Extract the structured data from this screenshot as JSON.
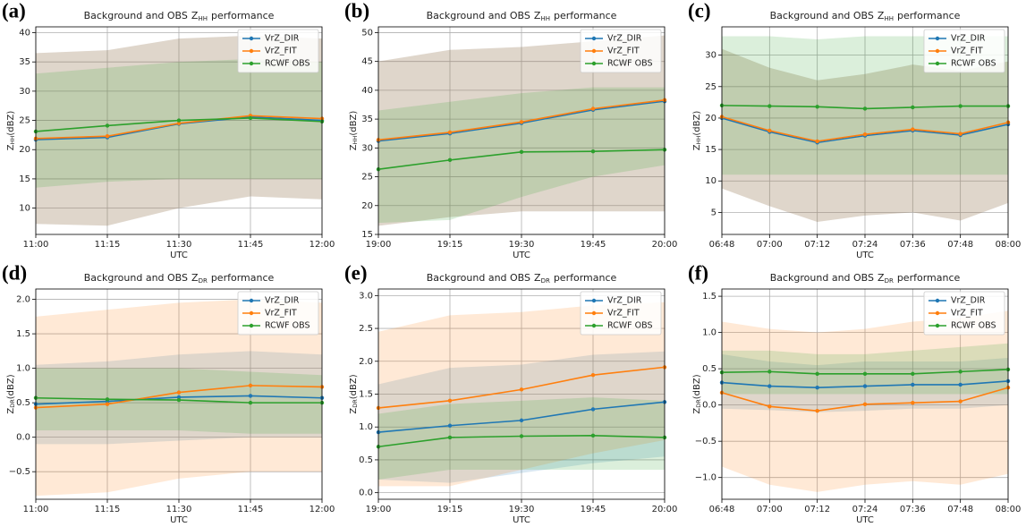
{
  "chart_data": [
    {
      "type": "line",
      "panel": "(a)",
      "title": "Background and OBS",
      "title_var": "Z",
      "title_sub": "HH",
      "title_end": "performance",
      "ylabel": "Z",
      "ylabel_sub": "HH",
      "ylabel_unit": "(dBZ)",
      "xlabel": "UTC",
      "categories": [
        "11:00",
        "11:15",
        "11:30",
        "11:45",
        "12:00"
      ],
      "series": [
        {
          "name": "VrZ_DIR",
          "color": "#1f77b4",
          "values": [
            21.7,
            22.1,
            24.4,
            25.6,
            25.0
          ],
          "lower": [
            7.3,
            7.0,
            10,
            12,
            11.5
          ],
          "upper": [
            36.5,
            37,
            39,
            39.5,
            39
          ]
        },
        {
          "name": "VrZ_FIT",
          "color": "#ff7f0e",
          "values": [
            21.9,
            22.3,
            24.5,
            25.8,
            25.3
          ],
          "lower": [
            7.3,
            7.0,
            10,
            12,
            11.5
          ],
          "upper": [
            36.5,
            37,
            39,
            39.5,
            39
          ]
        },
        {
          "name": "RCWF OBS",
          "color": "#2ca02c",
          "values": [
            23.1,
            24.1,
            25.0,
            25.4,
            24.8
          ],
          "lower": [
            13.5,
            14.5,
            15,
            15,
            15
          ],
          "upper": [
            33,
            34,
            35,
            35.5,
            35
          ]
        }
      ],
      "ylim": [
        5.5,
        41
      ],
      "yticks": [
        10,
        15,
        20,
        25,
        30,
        35,
        40
      ],
      "grid": true,
      "legend": "upper right"
    },
    {
      "type": "line",
      "panel": "(b)",
      "title": "Background and OBS",
      "title_var": "Z",
      "title_sub": "HH",
      "title_end": "performance",
      "ylabel": "Z",
      "ylabel_sub": "HH",
      "ylabel_unit": "(dBZ)",
      "xlabel": "UTC",
      "categories": [
        "19:00",
        "19:15",
        "19:30",
        "19:45",
        "20:00"
      ],
      "series": [
        {
          "name": "VrZ_DIR",
          "color": "#1f77b4",
          "values": [
            31.2,
            32.5,
            34.3,
            36.6,
            38.1
          ],
          "lower": [
            16.5,
            18,
            19,
            19,
            19
          ],
          "upper": [
            45,
            47,
            47.5,
            48.5,
            49.5
          ]
        },
        {
          "name": "VrZ_FIT",
          "color": "#ff7f0e",
          "values": [
            31.4,
            32.7,
            34.5,
            36.8,
            38.3
          ],
          "lower": [
            16.5,
            18,
            19,
            19,
            19
          ],
          "upper": [
            45,
            47,
            47.5,
            48.5,
            49.5
          ]
        },
        {
          "name": "RCWF OBS",
          "color": "#2ca02c",
          "values": [
            26.3,
            27.9,
            29.3,
            29.4,
            29.7
          ],
          "lower": [
            17,
            17.5,
            21.5,
            25,
            27
          ],
          "upper": [
            36.5,
            38,
            39.5,
            40.5,
            40.5
          ]
        }
      ],
      "ylim": [
        15,
        51
      ],
      "yticks": [
        15,
        20,
        25,
        30,
        35,
        40,
        45,
        50
      ],
      "grid": true,
      "legend": "upper right"
    },
    {
      "type": "line",
      "panel": "(c)",
      "title": "Background and OBS",
      "title_var": "Z",
      "title_sub": "HH",
      "title_end": "performance",
      "ylabel": "Z",
      "ylabel_sub": "HH",
      "ylabel_unit": "(dBZ)",
      "xlabel": "UTC",
      "categories": [
        "06:48",
        "07:00",
        "07:12",
        "07:24",
        "07:36",
        "07:48",
        "08:00"
      ],
      "series": [
        {
          "name": "VrZ_DIR",
          "color": "#1f77b4",
          "values": [
            20.0,
            17.8,
            16.1,
            17.2,
            18.0,
            17.3,
            19.0
          ],
          "lower": [
            8.8,
            6,
            3.5,
            4.5,
            5,
            3.7,
            6.5
          ],
          "upper": [
            31,
            28,
            26,
            27,
            28.5,
            27.5,
            29
          ]
        },
        {
          "name": "VrZ_FIT",
          "color": "#ff7f0e",
          "values": [
            20.2,
            18.0,
            16.3,
            17.4,
            18.2,
            17.5,
            19.3
          ],
          "lower": [
            8.8,
            6,
            3.5,
            4.5,
            5,
            3.7,
            6.5
          ],
          "upper": [
            31,
            28,
            26,
            27,
            28.5,
            27.5,
            29
          ]
        },
        {
          "name": "RCWF OBS",
          "color": "#2ca02c",
          "values": [
            22.0,
            21.9,
            21.8,
            21.5,
            21.7,
            21.9,
            21.9
          ],
          "lower": [
            11,
            11,
            11,
            11,
            11,
            11,
            11
          ],
          "upper": [
            33,
            33,
            32.5,
            33,
            33,
            33,
            33
          ]
        }
      ],
      "ylim": [
        1.5,
        34.5
      ],
      "yticks": [
        5,
        10,
        15,
        20,
        25,
        30
      ],
      "grid": true,
      "legend": "upper right"
    },
    {
      "type": "line",
      "panel": "(d)",
      "title": "Background and OBS",
      "title_var": "Z",
      "title_sub": "DR",
      "title_end": "performance",
      "ylabel": "Z",
      "ylabel_sub": "DR",
      "ylabel_unit": "(dBZ)",
      "xlabel": "UTC",
      "categories": [
        "11:00",
        "11:15",
        "11:30",
        "11:45",
        "12:00"
      ],
      "series": [
        {
          "name": "VrZ_DIR",
          "color": "#1f77b4",
          "values": [
            0.48,
            0.52,
            0.58,
            0.6,
            0.57
          ],
          "lower": [
            -0.1,
            -0.1,
            -0.05,
            0,
            0
          ],
          "upper": [
            1.05,
            1.1,
            1.2,
            1.25,
            1.2
          ]
        },
        {
          "name": "VrZ_FIT",
          "color": "#ff7f0e",
          "values": [
            0.43,
            0.48,
            0.65,
            0.75,
            0.73
          ],
          "lower": [
            -0.85,
            -0.8,
            -0.6,
            -0.5,
            -0.5
          ],
          "upper": [
            1.75,
            1.85,
            1.95,
            2.0,
            1.95
          ]
        },
        {
          "name": "RCWF OBS",
          "color": "#2ca02c",
          "values": [
            0.57,
            0.55,
            0.54,
            0.5,
            0.5
          ],
          "lower": [
            0.1,
            0.1,
            0.1,
            0.05,
            0.05
          ],
          "upper": [
            1.0,
            1.0,
            1.0,
            0.95,
            0.9
          ]
        }
      ],
      "ylim": [
        -0.9,
        2.15
      ],
      "yticks": [
        {
          "value": -0.5,
          "label": "−0.5"
        },
        {
          "value": 0,
          "label": "0.0"
        },
        0.5,
        {
          "value": 1,
          "label": "1.0"
        },
        1.5,
        {
          "value": 2,
          "label": "2.0"
        }
      ],
      "grid": true,
      "legend": "upper right"
    },
    {
      "type": "line",
      "panel": "(e)",
      "title": "Background and OBS",
      "title_var": "Z",
      "title_sub": "DR",
      "title_end": "performance",
      "ylabel": "Z",
      "ylabel_sub": "DR",
      "ylabel_unit": "(dBZ)",
      "xlabel": "UTC",
      "categories": [
        "19:00",
        "19:15",
        "19:30",
        "19:45",
        "20:00"
      ],
      "series": [
        {
          "name": "VrZ_DIR",
          "color": "#1f77b4",
          "values": [
            0.92,
            1.02,
            1.1,
            1.27,
            1.38
          ],
          "lower": [
            0.2,
            0.15,
            0.3,
            0.45,
            0.55
          ],
          "upper": [
            1.65,
            1.9,
            1.95,
            2.1,
            2.15
          ]
        },
        {
          "name": "VrZ_FIT",
          "color": "#ff7f0e",
          "values": [
            1.29,
            1.4,
            1.57,
            1.79,
            1.91
          ],
          "lower": [
            0.1,
            0.1,
            0.35,
            0.6,
            0.8
          ],
          "upper": [
            2.45,
            2.7,
            2.75,
            2.85,
            2.9
          ]
        },
        {
          "name": "RCWF OBS",
          "color": "#2ca02c",
          "values": [
            0.7,
            0.84,
            0.86,
            0.87,
            0.84
          ],
          "lower": [
            0.2,
            0.35,
            0.35,
            0.35,
            0.35
          ],
          "upper": [
            1.2,
            1.35,
            1.4,
            1.45,
            1.4
          ]
        }
      ],
      "ylim": [
        -0.1,
        3.1
      ],
      "yticks": [
        {
          "value": 0,
          "label": "0.0"
        },
        0.5,
        {
          "value": 1,
          "label": "1.0"
        },
        1.5,
        {
          "value": 2,
          "label": "2.0"
        },
        2.5,
        {
          "value": 3,
          "label": "3.0"
        }
      ],
      "grid": true,
      "legend": "upper right"
    },
    {
      "type": "line",
      "panel": "(f)",
      "title": "Background and OBS",
      "title_var": "Z",
      "title_sub": "DR",
      "title_end": "performance",
      "ylabel": "Z",
      "ylabel_sub": "DR",
      "ylabel_unit": "(dBZ)",
      "xlabel": "UTC",
      "categories": [
        "06:48",
        "07:00",
        "07:12",
        "07:24",
        "07:36",
        "07:48",
        "08:00"
      ],
      "series": [
        {
          "name": "VrZ_DIR",
          "color": "#1f77b4",
          "values": [
            0.31,
            0.26,
            0.24,
            0.26,
            0.28,
            0.28,
            0.33
          ],
          "lower": [
            -0.05,
            -0.07,
            -0.1,
            -0.08,
            -0.05,
            -0.05,
            0
          ],
          "upper": [
            0.7,
            0.6,
            0.55,
            0.6,
            0.6,
            0.6,
            0.65
          ]
        },
        {
          "name": "VrZ_FIT",
          "color": "#ff7f0e",
          "values": [
            0.17,
            -0.02,
            -0.08,
            0.01,
            0.03,
            0.05,
            0.24
          ],
          "lower": [
            -0.85,
            -1.1,
            -1.2,
            -1.1,
            -1.05,
            -1.1,
            -0.95
          ],
          "upper": [
            1.15,
            1.05,
            1.0,
            1.05,
            1.15,
            1.2,
            1.3
          ]
        },
        {
          "name": "RCWF OBS",
          "color": "#2ca02c",
          "values": [
            0.45,
            0.46,
            0.43,
            0.43,
            0.43,
            0.46,
            0.49
          ],
          "lower": [
            0.15,
            0.15,
            0.15,
            0.15,
            0.15,
            0.15,
            0.15
          ],
          "upper": [
            0.75,
            0.75,
            0.7,
            0.7,
            0.75,
            0.8,
            0.85
          ]
        }
      ],
      "ylim": [
        -1.3,
        1.6
      ],
      "yticks": [
        {
          "value": -1,
          "label": "−1.0"
        },
        {
          "value": -0.5,
          "label": "−0.5"
        },
        {
          "value": 0,
          "label": "0.0"
        },
        0.5,
        {
          "value": 1,
          "label": "1.0"
        },
        1.5
      ],
      "grid": true,
      "legend": "upper right"
    }
  ]
}
